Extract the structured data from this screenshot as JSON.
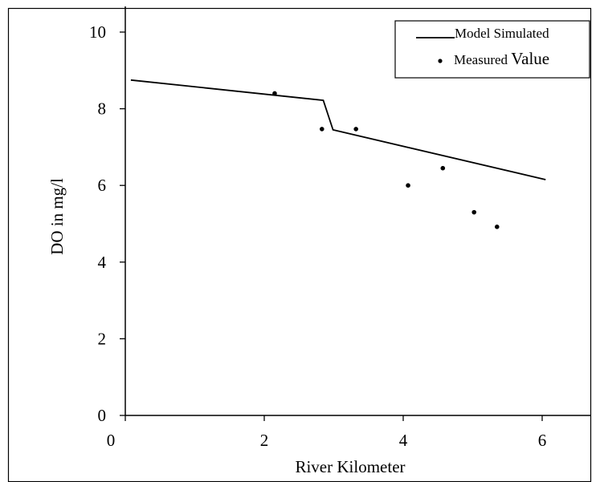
{
  "chart_data": {
    "type": "line",
    "title": "",
    "xlabel": "River Kilometer",
    "ylabel": "DO in mg/l",
    "xlim": [
      0,
      6.6
    ],
    "ylim": [
      0,
      10.6
    ],
    "x_ticks": [
      0,
      2,
      4,
      6
    ],
    "y_ticks": [
      0,
      2,
      4,
      6,
      8,
      10
    ],
    "grid": false,
    "legend_position": "top-right",
    "series": [
      {
        "name": "Model Simulated",
        "kind": "line",
        "color": "#000000",
        "x": [
          0.08,
          2.85,
          2.99,
          6.05
        ],
        "y": [
          8.75,
          8.22,
          7.45,
          6.15
        ]
      },
      {
        "name": "Measured Value",
        "kind": "scatter",
        "color": "#000000",
        "x": [
          2.15,
          2.83,
          3.32,
          4.07,
          4.57,
          5.02,
          5.35
        ],
        "y": [
          8.4,
          7.47,
          7.47,
          6.0,
          6.45,
          5.3,
          4.92
        ]
      }
    ],
    "legend": {
      "line_label": "Model Simulated",
      "marker_label_small": "Measured ",
      "marker_label_big": "Value"
    }
  }
}
